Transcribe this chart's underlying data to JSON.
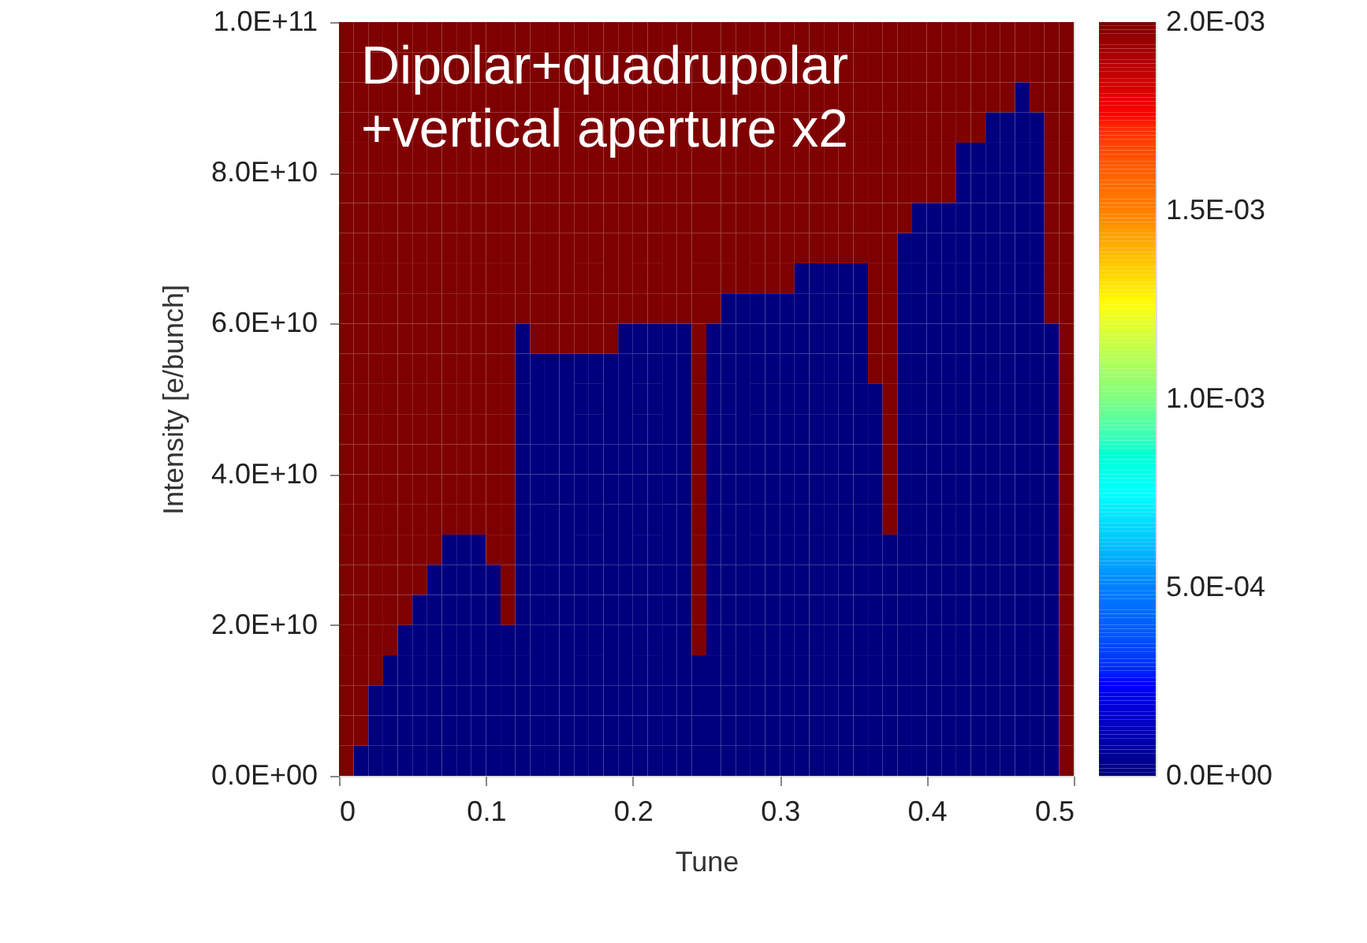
{
  "chart_data": {
    "type": "heatmap",
    "xlabel": "Tune",
    "ylabel": "Intensity [e/bunch]",
    "annotations": [
      "Dipolar+quadrupolar\n+vertical aperture x2"
    ],
    "xlim": [
      0,
      0.5
    ],
    "xticks": [
      0,
      0.1,
      0.2,
      0.3,
      0.4,
      0.5
    ],
    "ylim": [
      0,
      100000000000
    ],
    "yticks": [
      {
        "value": 0,
        "label": "0.0E+00"
      },
      {
        "value": 20000000000,
        "label": "2.0E+10"
      },
      {
        "value": 40000000000,
        "label": "4.0E+10"
      },
      {
        "value": 60000000000,
        "label": "6.0E+10"
      },
      {
        "value": 80000000000,
        "label": "8.0E+10"
      },
      {
        "value": 100000000000,
        "label": "1.0E+11"
      }
    ],
    "clim": [
      0,
      0.002
    ],
    "cticks": [
      {
        "value": 0,
        "label": "0.0E+00"
      },
      {
        "value": 0.0005,
        "label": "5.0E-04"
      },
      {
        "value": 0.001,
        "label": "1.0E-03"
      },
      {
        "value": 0.0015,
        "label": "1.5E-03"
      },
      {
        "value": 0.002,
        "label": "2.0E-03"
      }
    ],
    "colors": [
      "#00007f",
      "#0000ff",
      "#007fff",
      "#00ffff",
      "#7fff7f",
      "#ffff00",
      "#ff7f00",
      "#ff0000",
      "#7f0000"
    ],
    "cells": [
      [
        0.002,
        0.002,
        0.002,
        0.002,
        0.002,
        0.002,
        0.002,
        0.002,
        0.002,
        0.002,
        0.002,
        0.002,
        0.002,
        0.002,
        0.002,
        0.002,
        0.002,
        0.002,
        0.002,
        0.002,
        0.002,
        0.002,
        0.002,
        0.002,
        0.002,
        0.002,
        0.002,
        0.002,
        0.002,
        0.002,
        0.002,
        0.002,
        0.002,
        0.002,
        0.002,
        0.002,
        0.002,
        0.002,
        0.002,
        0.002,
        0.002,
        0.002,
        0.002,
        0.002,
        0.002,
        0.002,
        0.002,
        0.002,
        0.002,
        0.002
      ],
      [
        0.002,
        0.002,
        0.002,
        0.002,
        0.002,
        0.002,
        0.002,
        0.002,
        0.002,
        0.002,
        0.002,
        0.002,
        0.002,
        0.002,
        0.002,
        0.002,
        0.002,
        0.002,
        0.002,
        0.002,
        0.002,
        0.002,
        0.002,
        0.002,
        0.002,
        0.002,
        0.002,
        0.002,
        0.002,
        0.002,
        0.002,
        0.002,
        0.002,
        0.002,
        0.002,
        0.002,
        0.002,
        0.002,
        0.002,
        0.002,
        0.002,
        0.002,
        0.002,
        0.002,
        0.002,
        0.002,
        0.002,
        0.002,
        0.002,
        0.002
      ],
      [
        0.002,
        0.002,
        0.002,
        0.002,
        0.002,
        0.002,
        0.002,
        0.002,
        0.002,
        0.002,
        0.002,
        0.002,
        0.002,
        0.002,
        0.002,
        0.002,
        0.002,
        0.002,
        0.002,
        0.002,
        0.002,
        0.002,
        0.002,
        0.002,
        0.002,
        0.002,
        0.002,
        0.002,
        0.002,
        0.002,
        0.002,
        0.002,
        0.002,
        0.002,
        0.002,
        0.002,
        0.002,
        0.002,
        0.002,
        0.002,
        0.002,
        0.002,
        0.002,
        0.002,
        0.002,
        0.002,
        0,
        0.002,
        0.002,
        0.002
      ],
      [
        0.002,
        0.002,
        0.002,
        0.002,
        0.002,
        0.002,
        0.002,
        0.002,
        0.002,
        0.002,
        0.002,
        0.002,
        0.002,
        0.002,
        0.002,
        0.002,
        0.002,
        0.002,
        0.002,
        0.002,
        0.002,
        0.002,
        0.002,
        0.002,
        0.002,
        0.002,
        0.002,
        0.002,
        0.002,
        0.002,
        0.002,
        0.002,
        0.002,
        0.002,
        0.002,
        0.002,
        0.002,
        0.002,
        0.002,
        0.002,
        0.002,
        0.002,
        0.002,
        0.002,
        0,
        0,
        0,
        0,
        0.002,
        0.002
      ],
      [
        0.002,
        0.002,
        0.002,
        0.002,
        0.002,
        0.002,
        0.002,
        0.002,
        0.002,
        0.002,
        0.002,
        0.002,
        0.002,
        0.002,
        0.002,
        0.002,
        0.002,
        0.002,
        0.002,
        0.002,
        0.002,
        0.002,
        0.002,
        0.002,
        0.002,
        0.002,
        0.002,
        0.002,
        0.002,
        0.002,
        0.002,
        0.002,
        0.002,
        0.002,
        0.002,
        0.002,
        0.002,
        0.002,
        0.002,
        0.002,
        0.002,
        0.002,
        0,
        0,
        0,
        0,
        0,
        0,
        0.002,
        0.002
      ],
      [
        0.002,
        0.002,
        0.002,
        0.002,
        0.002,
        0.002,
        0.002,
        0.002,
        0.002,
        0.002,
        0.002,
        0.002,
        0.002,
        0.002,
        0.002,
        0.002,
        0.002,
        0.002,
        0.002,
        0.002,
        0.002,
        0.002,
        0.002,
        0.002,
        0.002,
        0.002,
        0.002,
        0.002,
        0.002,
        0.002,
        0.002,
        0.002,
        0.002,
        0.002,
        0.002,
        0.002,
        0.002,
        0.002,
        0.002,
        0.002,
        0.002,
        0.002,
        0,
        0,
        0,
        0,
        0,
        0,
        0.002,
        0.002
      ],
      [
        0.002,
        0.002,
        0.002,
        0.002,
        0.002,
        0.002,
        0.002,
        0.002,
        0.002,
        0.002,
        0.002,
        0.002,
        0.002,
        0.002,
        0.002,
        0.002,
        0.002,
        0.002,
        0.002,
        0.002,
        0.002,
        0.002,
        0.002,
        0.002,
        0.002,
        0.002,
        0.002,
        0.002,
        0.002,
        0.002,
        0.002,
        0.002,
        0.002,
        0.002,
        0.002,
        0.002,
        0.002,
        0.002,
        0.002,
        0,
        0,
        0,
        0,
        0,
        0,
        0,
        0,
        0,
        0.002,
        0.002
      ],
      [
        0.002,
        0.002,
        0.002,
        0.002,
        0.002,
        0.002,
        0.002,
        0.002,
        0.002,
        0.002,
        0.002,
        0.002,
        0.002,
        0.002,
        0.002,
        0.002,
        0.002,
        0.002,
        0.002,
        0.002,
        0.002,
        0.002,
        0.002,
        0.002,
        0.002,
        0.002,
        0.002,
        0.002,
        0.002,
        0.002,
        0.002,
        0.002,
        0.002,
        0.002,
        0.002,
        0.002,
        0.002,
        0.002,
        0,
        0,
        0,
        0,
        0,
        0,
        0,
        0,
        0,
        0,
        0.002,
        0.002
      ],
      [
        0.002,
        0.002,
        0.002,
        0.002,
        0.002,
        0.002,
        0.002,
        0.002,
        0.002,
        0.002,
        0.002,
        0.002,
        0.002,
        0.002,
        0.002,
        0.002,
        0.002,
        0.002,
        0.002,
        0.002,
        0.002,
        0.002,
        0.002,
        0.002,
        0.002,
        0.002,
        0.002,
        0.002,
        0.002,
        0.002,
        0.002,
        0,
        0,
        0,
        0,
        0,
        0.002,
        0.002,
        0,
        0,
        0,
        0,
        0,
        0,
        0,
        0,
        0,
        0,
        0.002,
        0.002
      ],
      [
        0.002,
        0.002,
        0.002,
        0.002,
        0.002,
        0.002,
        0.002,
        0.002,
        0.002,
        0.002,
        0.002,
        0.002,
        0.002,
        0.002,
        0.002,
        0.002,
        0.002,
        0.002,
        0.002,
        0.002,
        0.002,
        0.002,
        0.002,
        0.002,
        0.002,
        0.002,
        0,
        0,
        0,
        0,
        0,
        0,
        0,
        0,
        0,
        0,
        0.002,
        0.002,
        0,
        0,
        0,
        0,
        0,
        0,
        0,
        0,
        0,
        0,
        0.002,
        0.002
      ],
      [
        0.002,
        0.002,
        0.002,
        0.002,
        0.002,
        0.002,
        0.002,
        0.002,
        0.002,
        0.002,
        0.002,
        0.002,
        0,
        0.002,
        0.002,
        0.002,
        0.002,
        0.002,
        0.002,
        0,
        0,
        0,
        0,
        0,
        0.002,
        0,
        0,
        0,
        0,
        0,
        0,
        0,
        0,
        0,
        0,
        0,
        0.002,
        0.002,
        0,
        0,
        0,
        0,
        0,
        0,
        0,
        0,
        0,
        0,
        0,
        0.002
      ],
      [
        0.002,
        0.002,
        0.002,
        0.002,
        0.002,
        0.002,
        0.002,
        0.002,
        0.002,
        0.002,
        0.002,
        0.002,
        0,
        0,
        0,
        0,
        0,
        0,
        0,
        0,
        0,
        0,
        0,
        0,
        0.002,
        0,
        0,
        0,
        0,
        0,
        0,
        0,
        0,
        0,
        0,
        0,
        0.002,
        0.002,
        0,
        0,
        0,
        0,
        0,
        0,
        0,
        0,
        0,
        0,
        0,
        0.002
      ],
      [
        0.002,
        0.002,
        0.002,
        0.002,
        0.002,
        0.002,
        0.002,
        0.002,
        0.002,
        0.002,
        0.002,
        0.002,
        0,
        0,
        0,
        0,
        0,
        0,
        0,
        0,
        0,
        0,
        0,
        0,
        0.002,
        0,
        0,
        0,
        0,
        0,
        0,
        0,
        0,
        0,
        0,
        0,
        0,
        0.002,
        0,
        0,
        0,
        0,
        0,
        0,
        0,
        0,
        0,
        0,
        0,
        0.002
      ],
      [
        0.002,
        0.002,
        0.002,
        0.002,
        0.002,
        0.002,
        0.002,
        0.002,
        0.002,
        0.002,
        0.002,
        0.002,
        0,
        0,
        0,
        0,
        0,
        0,
        0,
        0,
        0,
        0,
        0,
        0,
        0.002,
        0,
        0,
        0,
        0,
        0,
        0,
        0,
        0,
        0,
        0,
        0,
        0,
        0.002,
        0,
        0,
        0,
        0,
        0,
        0,
        0,
        0,
        0,
        0,
        0,
        0.002
      ],
      [
        0.002,
        0.002,
        0.002,
        0.002,
        0.002,
        0.002,
        0.002,
        0.002,
        0.002,
        0.002,
        0.002,
        0.002,
        0,
        0,
        0,
        0,
        0,
        0,
        0,
        0,
        0,
        0,
        0,
        0,
        0.002,
        0,
        0,
        0,
        0,
        0,
        0,
        0,
        0,
        0,
        0,
        0,
        0,
        0.002,
        0,
        0,
        0,
        0,
        0,
        0,
        0,
        0,
        0,
        0,
        0,
        0.002
      ],
      [
        0.002,
        0.002,
        0.002,
        0.002,
        0.002,
        0.002,
        0.002,
        0.002,
        0.002,
        0.002,
        0.002,
        0.002,
        0,
        0,
        0,
        0,
        0,
        0,
        0,
        0,
        0,
        0,
        0,
        0,
        0.002,
        0,
        0,
        0,
        0,
        0,
        0,
        0,
        0,
        0,
        0,
        0,
        0,
        0.002,
        0,
        0,
        0,
        0,
        0,
        0,
        0,
        0,
        0,
        0,
        0,
        0.002
      ],
      [
        0.002,
        0.002,
        0.002,
        0.002,
        0.002,
        0.002,
        0.002,
        0.002,
        0.002,
        0.002,
        0.002,
        0.002,
        0,
        0,
        0,
        0,
        0,
        0,
        0,
        0,
        0,
        0,
        0,
        0,
        0.002,
        0,
        0,
        0,
        0,
        0,
        0,
        0,
        0,
        0,
        0,
        0,
        0,
        0.002,
        0,
        0,
        0,
        0,
        0,
        0,
        0,
        0,
        0,
        0,
        0,
        0.002
      ],
      [
        0.002,
        0.002,
        0.002,
        0.002,
        0.002,
        0.002,
        0.002,
        0,
        0,
        0,
        0.002,
        0.002,
        0,
        0,
        0,
        0,
        0,
        0,
        0,
        0,
        0,
        0,
        0,
        0,
        0.002,
        0,
        0,
        0,
        0,
        0,
        0,
        0,
        0,
        0,
        0,
        0,
        0,
        0,
        0,
        0,
        0,
        0,
        0,
        0,
        0,
        0,
        0,
        0,
        0,
        0.002
      ],
      [
        0.002,
        0.002,
        0.002,
        0.002,
        0.002,
        0.002,
        0,
        0,
        0,
        0,
        0,
        0.002,
        0,
        0,
        0,
        0,
        0,
        0,
        0,
        0,
        0,
        0,
        0,
        0,
        0.002,
        0,
        0,
        0,
        0,
        0,
        0,
        0,
        0,
        0,
        0,
        0,
        0,
        0,
        0,
        0,
        0,
        0,
        0,
        0,
        0,
        0,
        0,
        0,
        0,
        0.002
      ],
      [
        0.002,
        0.002,
        0.002,
        0.002,
        0.002,
        0,
        0,
        0,
        0,
        0,
        0,
        0.002,
        0,
        0,
        0,
        0,
        0,
        0,
        0,
        0,
        0,
        0,
        0,
        0,
        0.002,
        0,
        0,
        0,
        0,
        0,
        0,
        0,
        0,
        0,
        0,
        0,
        0,
        0,
        0,
        0,
        0,
        0,
        0,
        0,
        0,
        0,
        0,
        0,
        0,
        0.002
      ],
      [
        0.002,
        0.002,
        0.002,
        0.002,
        0,
        0,
        0,
        0,
        0,
        0,
        0,
        0,
        0,
        0,
        0,
        0,
        0,
        0,
        0,
        0,
        0,
        0,
        0,
        0,
        0.002,
        0,
        0,
        0,
        0,
        0,
        0,
        0,
        0,
        0,
        0,
        0,
        0,
        0,
        0,
        0,
        0,
        0,
        0,
        0,
        0,
        0,
        0,
        0,
        0,
        0.002
      ],
      [
        0.002,
        0.002,
        0.002,
        0,
        0,
        0,
        0,
        0,
        0,
        0,
        0,
        0,
        0,
        0,
        0,
        0,
        0,
        0,
        0,
        0,
        0,
        0,
        0,
        0,
        0,
        0,
        0,
        0,
        0,
        0,
        0,
        0,
        0,
        0,
        0,
        0,
        0,
        0,
        0,
        0,
        0,
        0,
        0,
        0,
        0,
        0,
        0,
        0,
        0,
        0.002
      ],
      [
        0.002,
        0.002,
        0,
        0,
        0,
        0,
        0,
        0,
        0,
        0,
        0,
        0,
        0,
        0,
        0,
        0,
        0,
        0,
        0,
        0,
        0,
        0,
        0,
        0,
        0,
        0,
        0,
        0,
        0,
        0,
        0,
        0,
        0,
        0,
        0,
        0,
        0,
        0,
        0,
        0,
        0,
        0,
        0,
        0,
        0,
        0,
        0,
        0,
        0,
        0.002
      ],
      [
        0.002,
        0.002,
        0,
        0,
        0,
        0,
        0,
        0,
        0,
        0,
        0,
        0,
        0,
        0,
        0,
        0,
        0,
        0,
        0,
        0,
        0,
        0,
        0,
        0,
        0,
        0,
        0,
        0,
        0,
        0,
        0,
        0,
        0,
        0,
        0,
        0,
        0,
        0,
        0,
        0,
        0,
        0,
        0,
        0,
        0,
        0,
        0,
        0,
        0,
        0.002
      ],
      [
        0.002,
        0,
        0,
        0,
        0,
        0,
        0,
        0,
        0,
        0,
        0,
        0,
        0,
        0,
        0,
        0,
        0,
        0,
        0,
        0,
        0,
        0,
        0,
        0,
        0,
        0,
        0,
        0,
        0,
        0,
        0,
        0,
        0,
        0,
        0,
        0,
        0,
        0,
        0,
        0,
        0,
        0,
        0,
        0,
        0,
        0,
        0,
        0,
        0,
        0.002
      ]
    ]
  }
}
